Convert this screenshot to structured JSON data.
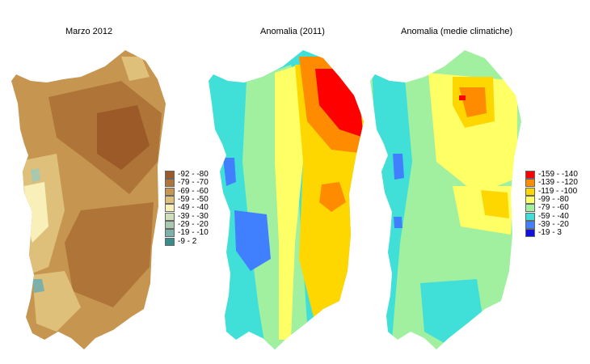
{
  "panels": [
    {
      "title": "Marzo 2012",
      "legend": [
        {
          "label": "-92 - -80",
          "color": "#9c5a28"
        },
        {
          "label": "-79 - -70",
          "color": "#ae7438"
        },
        {
          "label": "-69 - -60",
          "color": "#c69650"
        },
        {
          "label": "-59 - -50",
          "color": "#dfc07a"
        },
        {
          "label": "-49 - -40",
          "color": "#f8f0b8"
        },
        {
          "label": "-39 - -30",
          "color": "#cfe0b8"
        },
        {
          "label": "-29 - -20",
          "color": "#a8c8b0"
        },
        {
          "label": "-19 - -10",
          "color": "#7cb0a8"
        },
        {
          "label": "-9 - 2",
          "color": "#3a8c8c"
        }
      ]
    },
    {
      "title": "Anomalia (2011)"
    },
    {
      "title": "Anomalia (medie climatiche)",
      "legend": [
        {
          "label": "-159 - -140",
          "color": "#ff0000"
        },
        {
          "label": "-139 - -120",
          "color": "#ff8c00"
        },
        {
          "label": "-119 - -100",
          "color": "#ffd700"
        },
        {
          "label": "-99 - -80",
          "color": "#ffff66"
        },
        {
          "label": "-79 - -60",
          "color": "#a0f0a0"
        },
        {
          "label": "-59 - -40",
          "color": "#40e0d8"
        },
        {
          "label": "-39 - -20",
          "color": "#4080ff"
        },
        {
          "label": "-19 - 3",
          "color": "#1010e0"
        }
      ]
    }
  ]
}
